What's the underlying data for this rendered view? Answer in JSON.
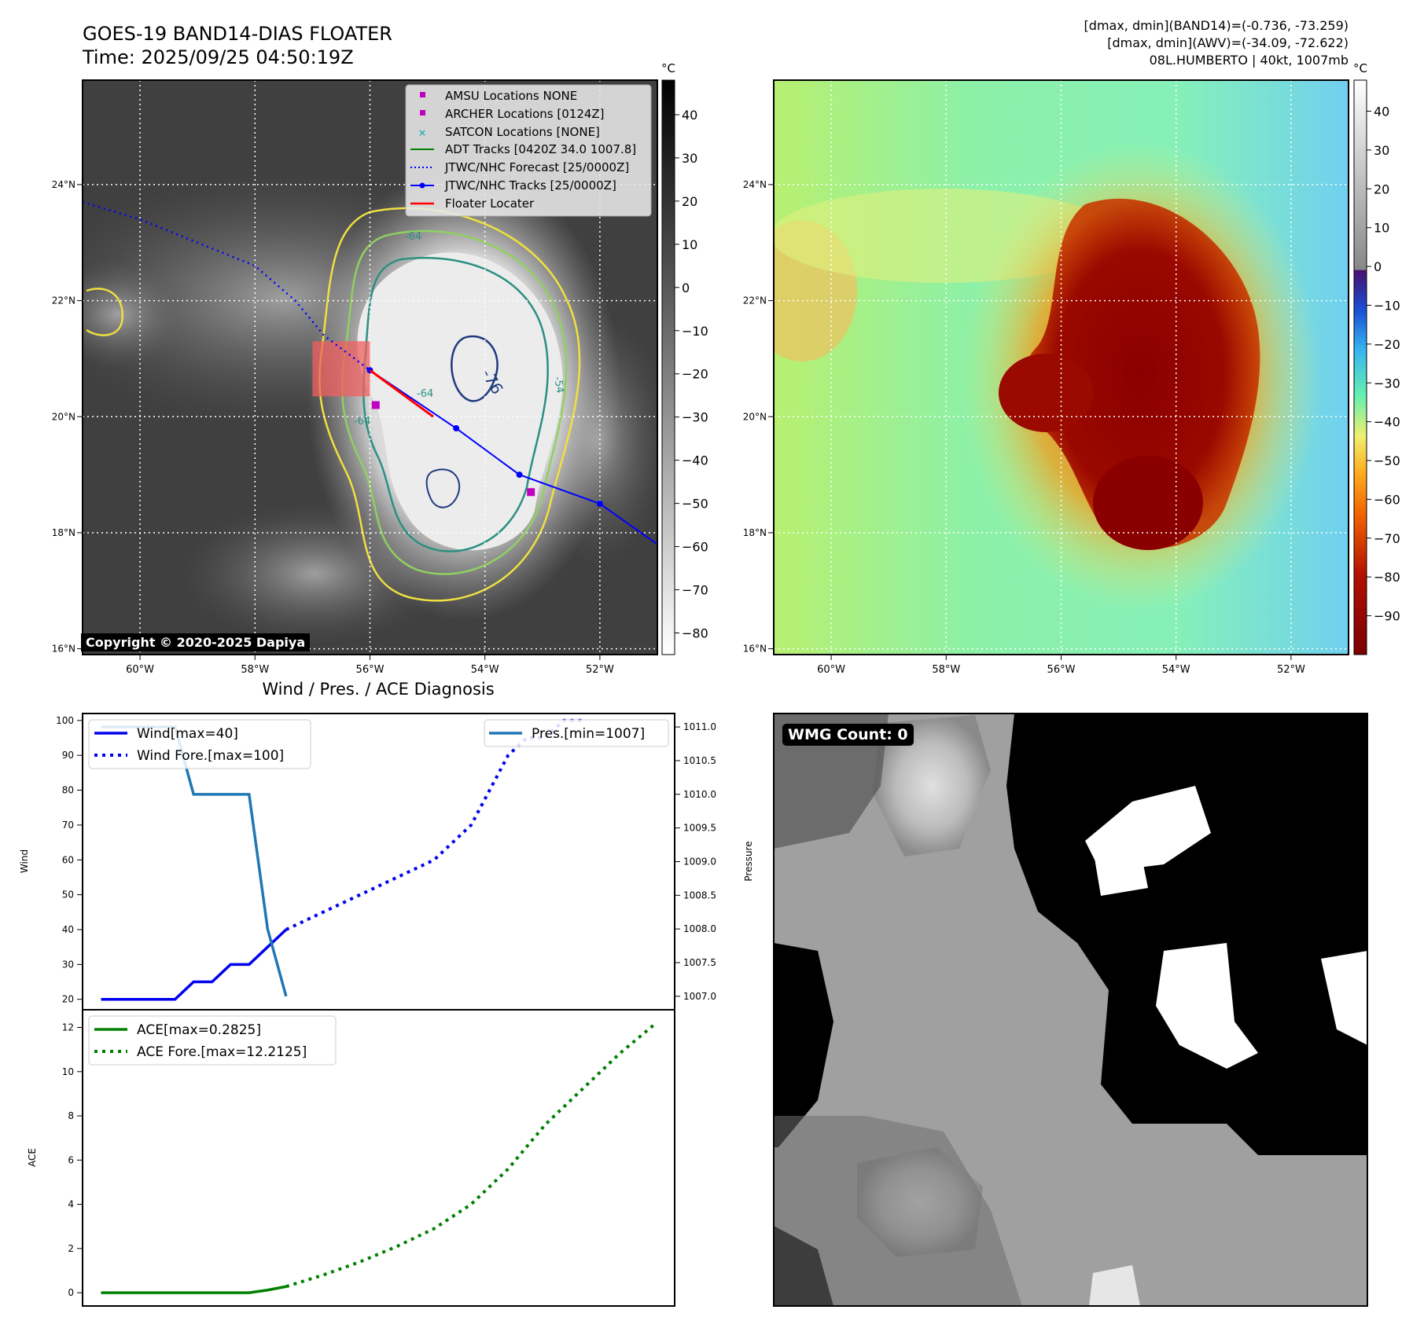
{
  "header": {
    "title_line1": "GOES-19 BAND14-DIAS FLOATER",
    "title_line2": "Time: 2025/09/25 04:50:19Z",
    "stats_line1": "[dmax, dmin](BAND14)=(-0.736, -73.259)",
    "stats_line2": "[dmax, dmin](AWV)=(-34.09, -72.622)",
    "stats_line3": "08L.HUMBERTO | 40kt, 1007mb"
  },
  "copyright": "Copyright © 2020-2025 Dapiya",
  "wmg_count": "WMG Count: 0",
  "colors": {
    "wind": "#0000ee",
    "pressure": "#1f77b4",
    "ace": "#008000",
    "track": "#0000ff",
    "floater": "#ff0000",
    "marker": "#c000c0"
  },
  "chart_data": [
    {
      "type": "heatmap",
      "name": "band14-grayscale-ir",
      "colorbar_unit": "°C",
      "colorbar_ticks": [
        40,
        30,
        20,
        10,
        0,
        -10,
        -20,
        -30,
        -40,
        -50,
        -60,
        -70,
        -80
      ],
      "colorbar_range": [
        -85,
        48
      ],
      "lon_ticks": [
        "60°W",
        "58°W",
        "56°W",
        "54°W",
        "52°W"
      ],
      "lat_ticks": [
        "24°N",
        "22°N",
        "20°N",
        "18°N",
        "16°N"
      ],
      "lon_range": [
        -61,
        -51
      ],
      "lat_range": [
        15.9,
        25.8
      ],
      "contour_labels": [
        "-64",
        "-64",
        "-76",
        "-64",
        "-54"
      ],
      "legend": [
        "AMSU Locations NONE",
        "ARCHER Locations [0124Z]",
        "SATCON Locations [NONE]",
        "ADT Tracks [0420Z 34.0 1007.8]",
        "JTWC/NHC Forecast [25/0000Z]",
        "JTWC/NHC Tracks [25/0000Z]",
        "Floater Locater"
      ],
      "track_points": [
        [
          -56.0,
          20.8
        ],
        [
          -54.5,
          19.8
        ],
        [
          -53.4,
          19.0
        ],
        [
          -52.0,
          18.5
        ],
        [
          -51.0,
          17.8
        ]
      ],
      "forecast_track": [
        [
          -61.0,
          23.7
        ],
        [
          -60.0,
          23.4
        ],
        [
          -59.0,
          23.0
        ],
        [
          -58.0,
          22.6
        ],
        [
          -57.3,
          22.0
        ],
        [
          -56.8,
          21.4
        ],
        [
          -56.0,
          20.8
        ]
      ],
      "archer_points": [
        [
          -55.9,
          20.2
        ],
        [
          -53.2,
          18.7
        ]
      ],
      "floater_box": {
        "lon": [
          -57.0,
          -56.0
        ],
        "lat": [
          20.35,
          21.3
        ]
      }
    },
    {
      "type": "heatmap",
      "name": "band14-enhanced-ir",
      "colorbar_unit": "°C",
      "colorbar_ticks": [
        40,
        30,
        20,
        10,
        0,
        -10,
        -20,
        -30,
        -40,
        -50,
        -60,
        -70,
        -80,
        -90
      ],
      "colorbar_range": [
        -100,
        48
      ],
      "lon_ticks": [
        "60°W",
        "58°W",
        "56°W",
        "54°W",
        "52°W"
      ],
      "lat_ticks": [
        "24°N",
        "22°N",
        "20°N",
        "18°N",
        "16°N"
      ]
    },
    {
      "type": "line",
      "title": "Wind / Pres. / ACE Diagnosis",
      "ylabel": "Wind",
      "ylabel_right": "Pressure",
      "ylim": [
        17,
        102
      ],
      "ylim_right": [
        1006.8,
        1011.2
      ],
      "yticks": [
        100,
        90,
        80,
        70,
        60,
        50,
        40,
        30,
        20
      ],
      "yticks_right": [
        "1011.0",
        "1010.5",
        "1010.0",
        "1009.5",
        "1009.0",
        "1008.5",
        "1008.0",
        "1007.5",
        "1007.0"
      ],
      "xlim": [
        -1,
        31
      ],
      "series": [
        {
          "name": "Wind[max=40]",
          "style": "solid",
          "x": [
            0,
            1,
            2,
            3,
            4,
            5,
            6,
            7,
            8,
            9,
            10
          ],
          "values": [
            20,
            20,
            20,
            20,
            20,
            25,
            25,
            30,
            30,
            35,
            40
          ]
        },
        {
          "name": "Wind Fore.[max=100]",
          "style": "dotted",
          "x": [
            10,
            12,
            14,
            16,
            18,
            19,
            20,
            21,
            22,
            23,
            24,
            25,
            26
          ],
          "values": [
            40,
            45,
            50,
            55,
            60,
            65,
            70,
            80,
            90,
            95,
            95,
            100,
            100
          ]
        },
        {
          "name": "Pres.[min=1007]",
          "style": "solid",
          "axis": "right",
          "x": [
            0,
            1,
            2,
            3,
            4,
            5,
            6,
            7,
            8,
            9,
            10
          ],
          "values": [
            1011,
            1011,
            1011,
            1011,
            1011,
            1010,
            1010,
            1010,
            1010,
            1008,
            1007
          ]
        }
      ]
    },
    {
      "type": "line",
      "ylabel": "ACE",
      "ylim": [
        -0.6,
        12.8
      ],
      "yticks": [
        12,
        10,
        8,
        6,
        4,
        2,
        0
      ],
      "xlim": [
        -1,
        31
      ],
      "series": [
        {
          "name": "ACE[max=0.2825]",
          "style": "solid",
          "x": [
            0,
            2,
            4,
            6,
            8,
            9,
            10
          ],
          "values": [
            0,
            0,
            0,
            0,
            0,
            0.12,
            0.28
          ]
        },
        {
          "name": "ACE Fore.[max=12.2125]",
          "style": "dotted",
          "x": [
            10,
            12,
            14,
            16,
            18,
            20,
            22,
            24,
            26,
            28,
            30
          ],
          "values": [
            0.28,
            0.8,
            1.4,
            2.1,
            2.9,
            4.0,
            5.6,
            7.6,
            9.2,
            10.8,
            12.2
          ]
        }
      ]
    },
    {
      "type": "heatmap",
      "name": "wmg-grayscale"
    }
  ]
}
